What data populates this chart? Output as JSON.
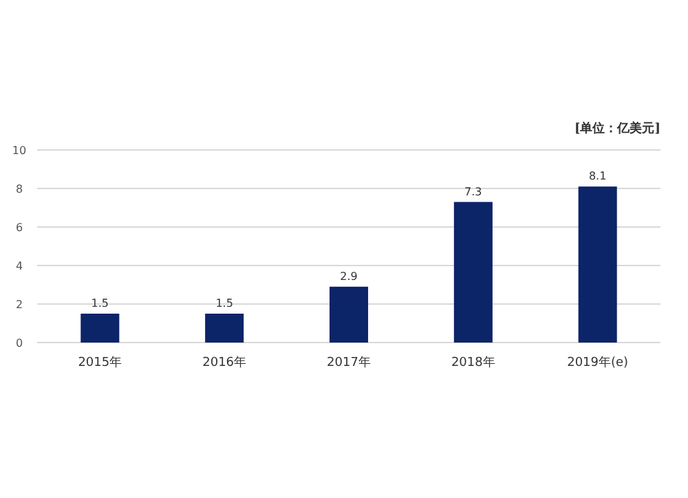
{
  "chart_data": {
    "type": "bar",
    "annotations": [
      "[单位：亿美元]"
    ],
    "categories": [
      "2015年",
      "2016年",
      "2017年",
      "2018年",
      "2019年(e)"
    ],
    "values": [
      1.5,
      1.5,
      2.9,
      7.3,
      8.1
    ],
    "color": "#0c2468",
    "ylim": [
      0,
      10
    ],
    "yticks": [
      0,
      2,
      4,
      6,
      8,
      10
    ],
    "grid": "y",
    "data_labels": true
  }
}
